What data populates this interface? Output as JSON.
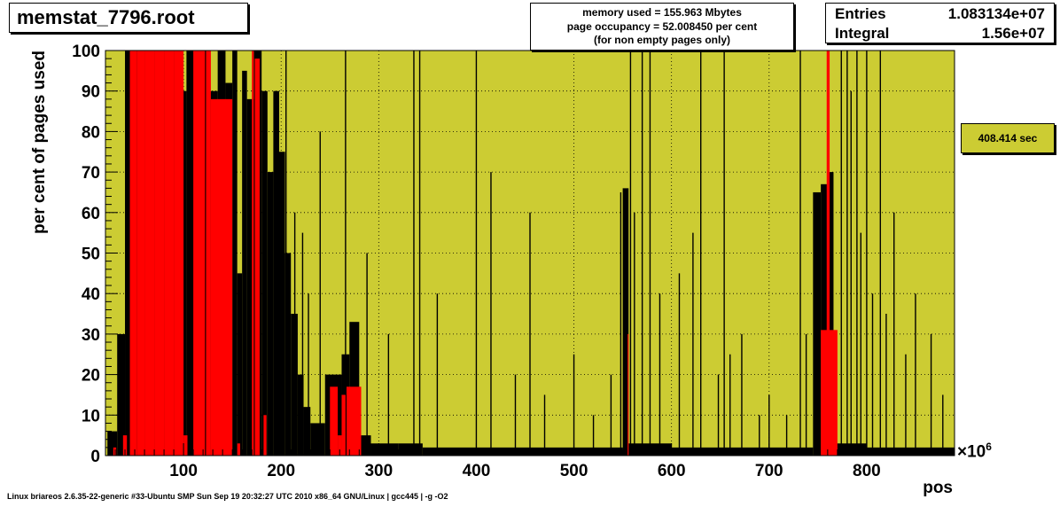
{
  "header": {
    "title": "memstat_7796.root",
    "info_lines": [
      "memory used = 155.963 Mbytes",
      "page occupancy = 52.008450 per cent",
      "(for non empty pages only)"
    ],
    "entries_label": "Entries",
    "entries_value": "1.083134e+07",
    "integral_label": "Integral",
    "integral_value": "1.56e+07",
    "elapsed": "408.414 sec"
  },
  "footer": {
    "system": "Linux briareos 2.6.35-22-generic #33-Ubuntu SMP Sun Sep 19 20:32:27 UTC 2010 x86_64 GNU/Linux | gcc445 | -g -O2"
  },
  "colors": {
    "frame_fill": "#cccc33",
    "occupancy": "#000000",
    "highlight": "#ff0000"
  },
  "chart_data": {
    "type": "bar",
    "title": "",
    "xlabel": "pos",
    "ylabel": "per cent of pages used",
    "x_exponent_base": "×10",
    "x_exponent_power": "6",
    "xlim": [
      20,
      890
    ],
    "ylim": [
      0,
      100
    ],
    "xticks": [
      100,
      200,
      300,
      400,
      500,
      600,
      700,
      800
    ],
    "yticks": [
      0,
      10,
      20,
      30,
      40,
      50,
      60,
      70,
      80,
      90,
      100
    ],
    "grid": true,
    "series": [
      {
        "name": "",
        "color": "#000000",
        "bars": [
          [
            22,
            32,
            6
          ],
          [
            32,
            40,
            30
          ],
          [
            40,
            47,
            100
          ],
          [
            47,
            65,
            100
          ],
          [
            65,
            85,
            100
          ],
          [
            85,
            97,
            100
          ],
          [
            97,
            103,
            90
          ],
          [
            103,
            113,
            100
          ],
          [
            113,
            125,
            100
          ],
          [
            125,
            135,
            90
          ],
          [
            135,
            143,
            100
          ],
          [
            143,
            150,
            92
          ],
          [
            150,
            155,
            100
          ],
          [
            155,
            160,
            45
          ],
          [
            160,
            165,
            95
          ],
          [
            165,
            172,
            88
          ],
          [
            172,
            180,
            100
          ],
          [
            180,
            186,
            90
          ],
          [
            186,
            192,
            70
          ],
          [
            192,
            198,
            90
          ],
          [
            198,
            204,
            75
          ],
          [
            204,
            210,
            50
          ],
          [
            210,
            217,
            35
          ],
          [
            217,
            223,
            20
          ],
          [
            223,
            230,
            12
          ],
          [
            230,
            245,
            8
          ],
          [
            245,
            262,
            20
          ],
          [
            262,
            270,
            25
          ],
          [
            270,
            280,
            33
          ],
          [
            280,
            292,
            5
          ],
          [
            292,
            320,
            3
          ],
          [
            320,
            345,
            3
          ],
          [
            345,
            400,
            2
          ],
          [
            400,
            450,
            2
          ],
          [
            450,
            500,
            2
          ],
          [
            500,
            550,
            2
          ],
          [
            550,
            556,
            66
          ],
          [
            556,
            600,
            3
          ],
          [
            600,
            700,
            2
          ],
          [
            700,
            745,
            2
          ],
          [
            745,
            753,
            65
          ],
          [
            753,
            760,
            67
          ],
          [
            760,
            766,
            70
          ],
          [
            766,
            800,
            3
          ],
          [
            800,
            860,
            2
          ],
          [
            860,
            890,
            2
          ]
        ],
        "spikes": [
          [
            205,
            100
          ],
          [
            214,
            60
          ],
          [
            222,
            55
          ],
          [
            228,
            40
          ],
          [
            240,
            80
          ],
          [
            266,
            100
          ],
          [
            288,
            50
          ],
          [
            310,
            30
          ],
          [
            336,
            100
          ],
          [
            342,
            100
          ],
          [
            360,
            40
          ],
          [
            400,
            100
          ],
          [
            415,
            70
          ],
          [
            440,
            20
          ],
          [
            455,
            60
          ],
          [
            470,
            15
          ],
          [
            500,
            25
          ],
          [
            520,
            10
          ],
          [
            538,
            20
          ],
          [
            548,
            65
          ],
          [
            558,
            100
          ],
          [
            562,
            60
          ],
          [
            570,
            100
          ],
          [
            578,
            100
          ],
          [
            588,
            40
          ],
          [
            608,
            45
          ],
          [
            622,
            55
          ],
          [
            630,
            100
          ],
          [
            648,
            20
          ],
          [
            654,
            100
          ],
          [
            660,
            25
          ],
          [
            672,
            30
          ],
          [
            690,
            10
          ],
          [
            700,
            15
          ],
          [
            718,
            10
          ],
          [
            732,
            100
          ],
          [
            738,
            30
          ],
          [
            774,
            100
          ],
          [
            780,
            100
          ],
          [
            784,
            90
          ],
          [
            790,
            100
          ],
          [
            794,
            55
          ],
          [
            800,
            100
          ],
          [
            806,
            40
          ],
          [
            814,
            100
          ],
          [
            820,
            35
          ],
          [
            828,
            60
          ],
          [
            840,
            25
          ],
          [
            850,
            40
          ],
          [
            866,
            30
          ],
          [
            878,
            15
          ]
        ]
      },
      {
        "name": "",
        "color": "#ff0000",
        "bars": [
          [
            28,
            31,
            2
          ],
          [
            38,
            42,
            5
          ],
          [
            45,
            52,
            100
          ],
          [
            52,
            60,
            100
          ],
          [
            60,
            70,
            100
          ],
          [
            70,
            80,
            100
          ],
          [
            80,
            90,
            100
          ],
          [
            90,
            100,
            100
          ],
          [
            100,
            104,
            5
          ],
          [
            110,
            122,
            100
          ],
          [
            123,
            128,
            100
          ],
          [
            128,
            150,
            88
          ],
          [
            155,
            158,
            3
          ],
          [
            170,
            172,
            100
          ],
          [
            173,
            178,
            98
          ],
          [
            182,
            185,
            10
          ],
          [
            250,
            258,
            17
          ],
          [
            258,
            262,
            5
          ],
          [
            262,
            266,
            15
          ],
          [
            267,
            282,
            17
          ],
          [
            555,
            556,
            30
          ],
          [
            753,
            770,
            31
          ],
          [
            759,
            762,
            100
          ]
        ]
      }
    ]
  }
}
